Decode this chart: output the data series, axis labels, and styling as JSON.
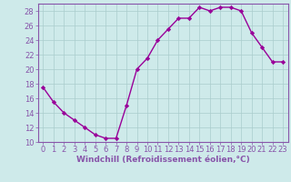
{
  "x": [
    0,
    1,
    2,
    3,
    4,
    5,
    6,
    7,
    8,
    9,
    10,
    11,
    12,
    13,
    14,
    15,
    16,
    17,
    18,
    19,
    20,
    21,
    22,
    23
  ],
  "y": [
    17.5,
    15.5,
    14.0,
    13.0,
    12.0,
    11.0,
    10.5,
    10.5,
    15.0,
    20.0,
    21.5,
    24.0,
    25.5,
    27.0,
    27.0,
    28.5,
    28.0,
    28.5,
    28.5,
    28.0,
    25.0,
    23.0,
    21.0,
    21.0
  ],
  "line_color": "#990099",
  "marker": "D",
  "marker_size": 2.2,
  "bg_color": "#ceeaea",
  "grid_color": "#aacccc",
  "xlabel": "Windchill (Refroidissement éolien,°C)",
  "xlim": [
    -0.5,
    23.5
  ],
  "ylim": [
    10,
    29
  ],
  "yticks": [
    10,
    12,
    14,
    16,
    18,
    20,
    22,
    24,
    26,
    28
  ],
  "xticks": [
    0,
    1,
    2,
    3,
    4,
    5,
    6,
    7,
    8,
    9,
    10,
    11,
    12,
    13,
    14,
    15,
    16,
    17,
    18,
    19,
    20,
    21,
    22,
    23
  ],
  "xlabel_fontsize": 6.5,
  "tick_fontsize": 6.0,
  "line_width": 1.0,
  "spine_color": "#8855aa",
  "tick_color": "#8855aa"
}
